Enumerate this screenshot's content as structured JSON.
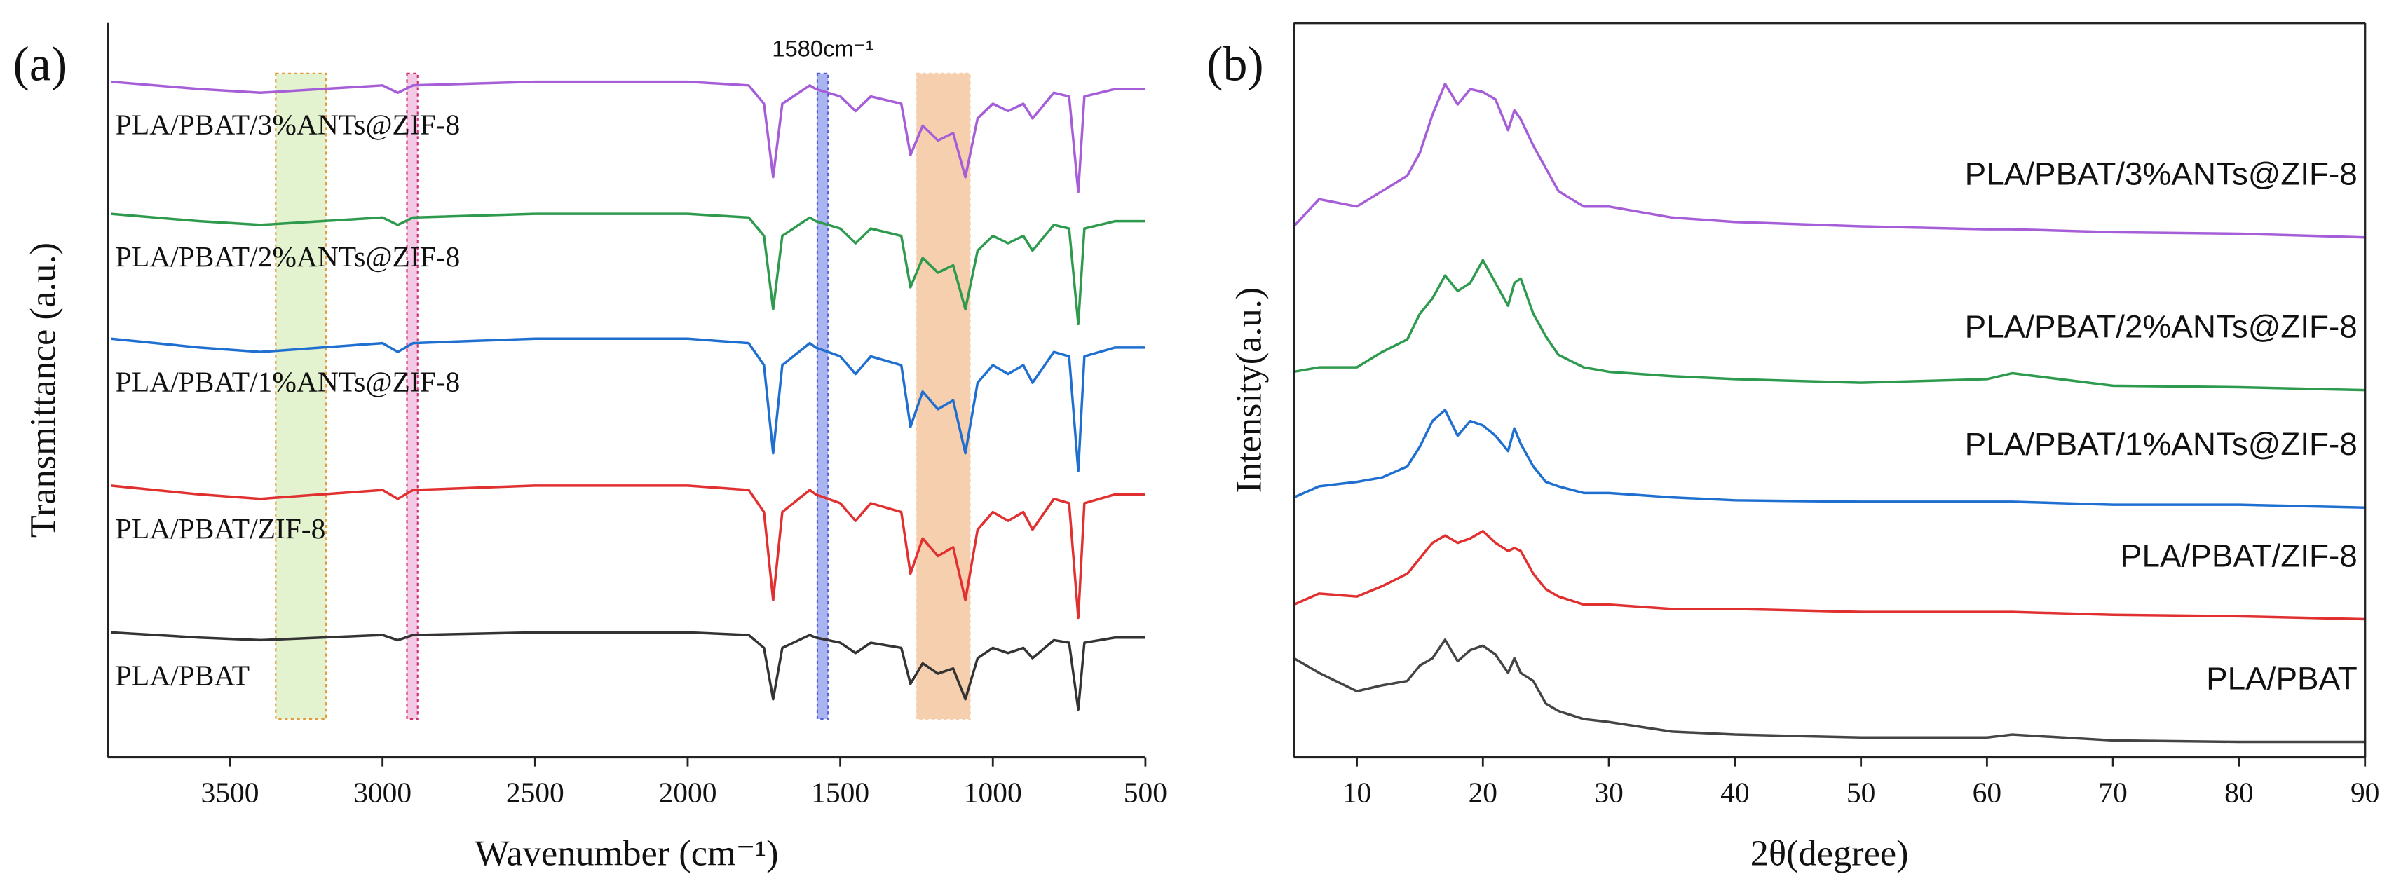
{
  "chart_data": [
    {
      "type": "line",
      "panel_label": "(a)",
      "xlabel": "Wavenumber (cm⁻¹)",
      "ylabel": "Transmittance (a.u.)",
      "xlim": [
        3900,
        500
      ],
      "xticks": [
        3500,
        3000,
        2500,
        2000,
        1500,
        1000,
        500
      ],
      "ylim": [
        0,
        100
      ],
      "box": false,
      "annotation": "1580cm⁻¹",
      "bands": [
        {
          "range": [
            3350,
            3185
          ],
          "color": "#e3f3cf",
          "edge": "#e39a3a"
        },
        {
          "range": [
            2920,
            2885
          ],
          "color": "#f3c9e6",
          "edge": "#d0306a"
        },
        {
          "range": [
            1575,
            1540
          ],
          "color": "#aab4f0",
          "edge": "#5060d8"
        },
        {
          "range": [
            1250,
            1075
          ],
          "color": "#f6cfae",
          "edge": "#f6cfae"
        }
      ],
      "x": [
        3890,
        3600,
        3400,
        3200,
        3000,
        2950,
        2900,
        2500,
        2000,
        1800,
        1750,
        1720,
        1690,
        1600,
        1580,
        1500,
        1450,
        1400,
        1300,
        1270,
        1230,
        1180,
        1130,
        1090,
        1050,
        1000,
        950,
        900,
        870,
        800,
        750,
        720,
        700,
        600,
        500
      ],
      "series": [
        {
          "name": "PLA/PBAT/3%ANTs@ZIF-8",
          "color": "#a65ed8",
          "values": [
            92,
            91,
            90.5,
            91,
            91.5,
            90.5,
            91.5,
            92,
            92,
            91.5,
            89,
            79,
            89,
            91.5,
            91,
            90,
            88,
            90,
            89,
            82,
            86,
            84,
            85,
            79,
            87,
            89,
            88,
            89,
            87,
            90.5,
            90,
            77,
            90,
            91,
            91
          ]
        },
        {
          "name": "PLA/PBAT/2%ANTs@ZIF-8",
          "color": "#2e9a4e",
          "values": [
            74,
            73,
            72.5,
            73,
            73.5,
            72.5,
            73.5,
            74,
            74,
            73.5,
            71,
            61,
            71,
            73.5,
            73,
            72,
            70,
            72,
            71,
            64,
            68,
            66,
            67,
            61,
            69,
            71,
            70,
            71,
            69,
            72.5,
            72,
            59,
            72,
            73,
            73
          ]
        },
        {
          "name": "PLA/PBAT/1%ANTs@ZIF-8",
          "color": "#1f6fd1",
          "values": [
            57,
            55.8,
            55.2,
            55.8,
            56.4,
            55.2,
            56.4,
            57,
            57,
            56.4,
            53.4,
            41.4,
            53.4,
            56.4,
            55.8,
            54.6,
            52.2,
            54.6,
            53.4,
            45,
            49.8,
            47.4,
            48.6,
            41.4,
            51,
            53.4,
            52.2,
            53.4,
            51,
            55.2,
            54.6,
            39,
            54.6,
            55.8,
            55.8
          ]
        },
        {
          "name": "PLA/PBAT/ZIF-8",
          "color": "#e03030",
          "values": [
            37,
            35.8,
            35.2,
            35.8,
            36.4,
            35.2,
            36.4,
            37,
            37,
            36.4,
            33.4,
            21.4,
            33.4,
            36.4,
            35.8,
            34.6,
            32.2,
            34.6,
            33.4,
            25,
            29.8,
            27.4,
            28.6,
            21.4,
            31,
            33.4,
            32.2,
            33.4,
            31,
            35.2,
            34.6,
            19,
            34.6,
            35.8,
            35.8
          ]
        },
        {
          "name": "PLA/PBAT",
          "color": "#333333",
          "values": [
            17,
            16.3,
            15.95,
            16.3,
            16.65,
            15.95,
            16.65,
            17,
            17,
            16.65,
            14.9,
            7.9,
            14.9,
            16.65,
            16.3,
            15.6,
            14.2,
            15.6,
            14.9,
            10,
            12.8,
            11.4,
            12.1,
            7.9,
            13.5,
            14.9,
            14.2,
            14.9,
            13.5,
            15.95,
            15.6,
            6.5,
            15.6,
            16.3,
            16.3
          ]
        }
      ]
    },
    {
      "type": "line",
      "panel_label": "(b)",
      "xlabel": "2θ(degree)",
      "ylabel": "Intensity(a.u.)",
      "xlim": [
        5,
        90
      ],
      "xticks": [
        10,
        20,
        30,
        40,
        50,
        60,
        70,
        80,
        90
      ],
      "ylim": [
        0,
        100
      ],
      "box": true,
      "x": [
        5,
        7,
        10,
        12,
        14,
        15,
        16,
        17,
        18,
        19,
        20,
        21,
        22,
        22.5,
        23,
        24,
        25,
        26,
        28,
        30,
        35,
        40,
        50,
        60,
        62,
        70,
        80,
        90
      ],
      "series": [
        {
          "name": "PLA/PBAT/3%ANTs@ZIF-8",
          "color": "#a65ed8",
          "values": [
            72.3,
            76.0,
            75.0,
            77.1,
            79.2,
            82.3,
            87.5,
            91.7,
            88.9,
            91.0,
            90.6,
            89.6,
            85.4,
            88.1,
            86.9,
            83.3,
            80.2,
            77.1,
            75.0,
            75.0,
            73.5,
            72.9,
            72.3,
            71.9,
            71.9,
            71.5,
            71.3,
            70.8
          ]
        },
        {
          "name": "PLA/PBAT/2%ANTs@ZIF-8",
          "color": "#2e9a4e",
          "values": [
            52.5,
            53.1,
            53.1,
            55.2,
            56.9,
            60.4,
            62.5,
            65.6,
            63.5,
            64.6,
            67.7,
            64.6,
            61.5,
            64.6,
            65.2,
            60.4,
            57.3,
            54.8,
            53.1,
            52.5,
            51.9,
            51.5,
            51.0,
            51.5,
            52.3,
            50.6,
            50.4,
            50.0
          ]
        },
        {
          "name": "PLA/PBAT/1%ANTs@ZIF-8",
          "color": "#1f6fd1",
          "values": [
            35.4,
            36.9,
            37.5,
            38.1,
            39.6,
            42.3,
            45.8,
            47.3,
            43.8,
            45.8,
            45.2,
            43.8,
            41.7,
            44.8,
            42.7,
            39.6,
            37.5,
            36.9,
            36.0,
            36.0,
            35.4,
            35.0,
            34.8,
            34.8,
            34.8,
            34.4,
            34.4,
            34.0
          ]
        },
        {
          "name": "PLA/PBAT/ZIF-8",
          "color": "#e03030",
          "values": [
            20.8,
            22.3,
            21.9,
            23.3,
            25.0,
            27.1,
            29.2,
            30.2,
            29.2,
            29.8,
            30.8,
            29.2,
            28.1,
            28.5,
            28.1,
            25.0,
            22.9,
            21.9,
            20.8,
            20.8,
            20.2,
            20.2,
            19.8,
            19.8,
            19.8,
            19.4,
            19.2,
            18.8
          ]
        },
        {
          "name": "PLA/PBAT",
          "color": "#444444",
          "values": [
            13.5,
            11.5,
            9.0,
            9.8,
            10.4,
            12.5,
            13.5,
            16.0,
            13.1,
            14.6,
            15.2,
            14.0,
            11.5,
            13.5,
            11.5,
            10.4,
            7.3,
            6.3,
            5.2,
            4.8,
            3.5,
            3.1,
            2.7,
            2.7,
            3.1,
            2.3,
            2.1,
            2.1
          ]
        }
      ]
    }
  ]
}
